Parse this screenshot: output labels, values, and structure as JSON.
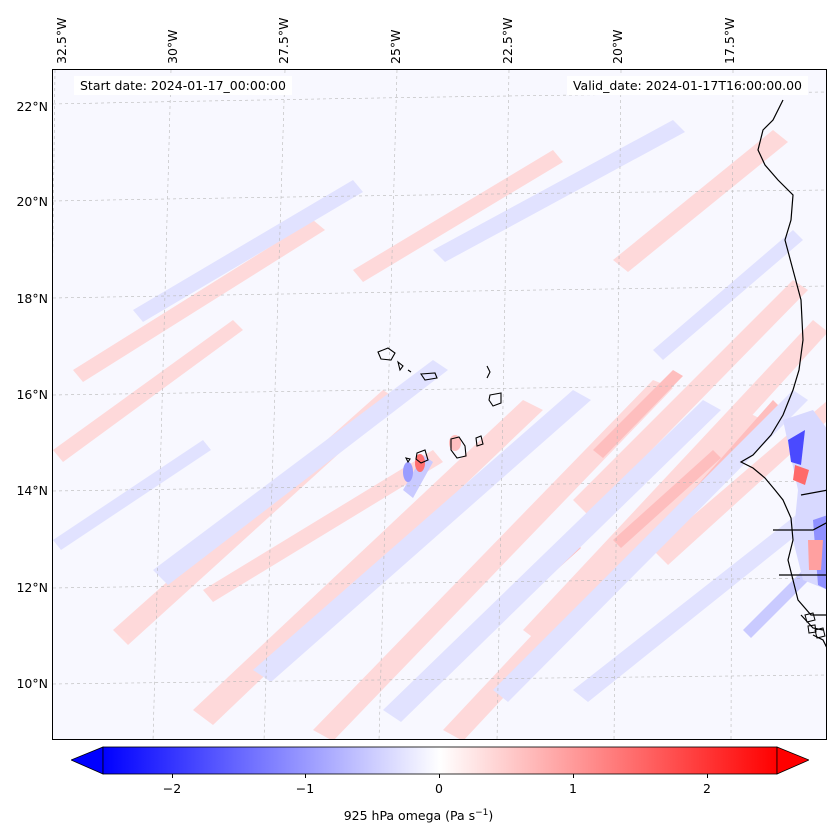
{
  "map": {
    "start_date": "Start date: 2024-01-17_00:00:00",
    "valid_date": "Valid_date: 2024-01-17T16:00:00.00",
    "lon_labels": [
      "32.5°W",
      "30°W",
      "27.5°W",
      "25°W",
      "22.5°W",
      "20°W",
      "17.5°W"
    ],
    "lat_labels": [
      "22°N",
      "20°N",
      "18°N",
      "16°N",
      "14°N",
      "12°N",
      "10°N"
    ],
    "colormap": "bwr",
    "coast_color": "#000000",
    "grid_color": "#b0b0b0"
  },
  "colorbar": {
    "ticks": [
      "−2",
      "−1",
      "0",
      "1",
      "2"
    ],
    "label_main": "925 hPa omega (Pa s",
    "label_exp": "−1",
    "label_close": ")",
    "min_color": "#0000ff",
    "mid_color": "#ffffff",
    "max_color": "#ff0000"
  }
}
